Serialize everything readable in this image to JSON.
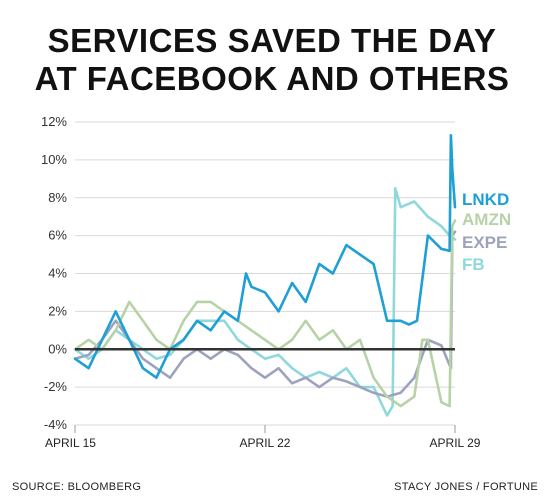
{
  "chart_data": {
    "type": "line",
    "title": "SERVICES SAVED THE DAY\nAT FACEBOOK AND OTHERS",
    "title_lines": [
      "SERVICES SAVED THE DAY",
      "AT FACEBOOK AND OTHERS"
    ],
    "ylim": [
      -4,
      12
    ],
    "yticks": [
      {
        "value": 12,
        "label": "12%"
      },
      {
        "value": 10,
        "label": "10%"
      },
      {
        "value": 8,
        "label": "8%"
      },
      {
        "value": 6,
        "label": "6%"
      },
      {
        "value": 4,
        "label": "4%"
      },
      {
        "value": 2,
        "label": "2%"
      },
      {
        "value": 0,
        "label": "0%"
      },
      {
        "value": -2,
        "label": "-2%"
      },
      {
        "value": -4,
        "label": "-4%"
      }
    ],
    "xlim": [
      0,
      14
    ],
    "xticks": [
      {
        "value": 0,
        "label": "APRIL 15"
      },
      {
        "value": 7,
        "label": "APRIL 22"
      },
      {
        "value": 14,
        "label": "APRIL 29"
      }
    ],
    "grid": true,
    "baseline": 0,
    "source": "SOURCE: BLOOMBERG",
    "credit": "STACY JONES / FORTUNE",
    "series": [
      {
        "name": "LNKD",
        "color": "#1e9fd6",
        "x": [
          0,
          0.5,
          1,
          1.5,
          2,
          2.5,
          3,
          3.5,
          4,
          4.5,
          5,
          5.5,
          6,
          6.3,
          6.5,
          7,
          7.5,
          8,
          8.5,
          9,
          9.5,
          10,
          10.5,
          11,
          11.5,
          12,
          12.3,
          12.6,
          13,
          13.5,
          13.8,
          13.85,
          13.9,
          14
        ],
        "y": [
          -0.5,
          -1,
          0.5,
          2,
          0.5,
          -1,
          -1.5,
          0,
          0.5,
          1.5,
          1,
          2,
          1.5,
          4,
          3.3,
          3,
          2,
          3.5,
          2.5,
          4.5,
          4,
          5.5,
          5,
          4.5,
          1.5,
          1.5,
          1.3,
          1.5,
          6,
          5.3,
          5.2,
          11.3,
          9.5,
          7.5
        ]
      },
      {
        "name": "AMZN",
        "color": "#b8d2a8",
        "x": [
          0,
          0.5,
          1,
          1.5,
          2,
          2.5,
          3,
          3.5,
          4,
          4.5,
          5,
          5.5,
          6,
          6.5,
          7,
          7.5,
          8,
          8.5,
          9,
          9.5,
          10,
          10.5,
          11,
          11.5,
          12,
          12.5,
          12.8,
          13,
          13.5,
          13.8,
          13.9,
          14
        ],
        "y": [
          0,
          0.5,
          0,
          1,
          2.5,
          1.5,
          0.5,
          0,
          1.5,
          2.5,
          2.5,
          2,
          1.5,
          1,
          0.5,
          0,
          0.5,
          1.5,
          0.5,
          1,
          0,
          0.5,
          -1.5,
          -2.5,
          -3,
          -2.5,
          0.5,
          0.5,
          -2.8,
          -3,
          6.5,
          6.8
        ]
      },
      {
        "name": "EXPE",
        "color": "#9ea3bd",
        "x": [
          0,
          0.5,
          1,
          1.5,
          2,
          2.5,
          3,
          3.5,
          4,
          4.5,
          5,
          5.5,
          6,
          6.5,
          7,
          7.5,
          8,
          8.5,
          9,
          9.5,
          10,
          10.5,
          11,
          11.5,
          12,
          12.5,
          13,
          13.5,
          13.7,
          13.85,
          13.9,
          14
        ],
        "y": [
          -0.5,
          -0.3,
          0.5,
          1.5,
          0.5,
          -0.5,
          -1,
          -1.5,
          -0.5,
          0,
          -0.5,
          0,
          -0.3,
          -1,
          -1.5,
          -1,
          -1.8,
          -1.5,
          -2,
          -1.5,
          -1.7,
          -2,
          -2.3,
          -2.5,
          -2.3,
          -1.5,
          0.5,
          0.2,
          -0.5,
          -1,
          6,
          6.2
        ]
      },
      {
        "name": "FB",
        "color": "#8fd8dc",
        "x": [
          0,
          0.5,
          1,
          1.5,
          2,
          2.5,
          3,
          3.5,
          4,
          4.5,
          5,
          5.5,
          6,
          6.5,
          7,
          7.5,
          8,
          8.5,
          9,
          9.5,
          10,
          10.5,
          11,
          11.5,
          11.7,
          11.8,
          12,
          12.5,
          13,
          13.5,
          13.8,
          14
        ],
        "y": [
          0,
          -0.5,
          0,
          1,
          0.5,
          0,
          -0.5,
          -0.3,
          0.5,
          1.5,
          1.5,
          1.5,
          0.5,
          0,
          -0.5,
          -0.3,
          -1,
          -1.5,
          -1.2,
          -1.5,
          -1,
          -2,
          -2,
          -3.5,
          -3,
          8.5,
          7.5,
          7.8,
          7,
          6.5,
          6,
          5.8
        ]
      }
    ]
  }
}
